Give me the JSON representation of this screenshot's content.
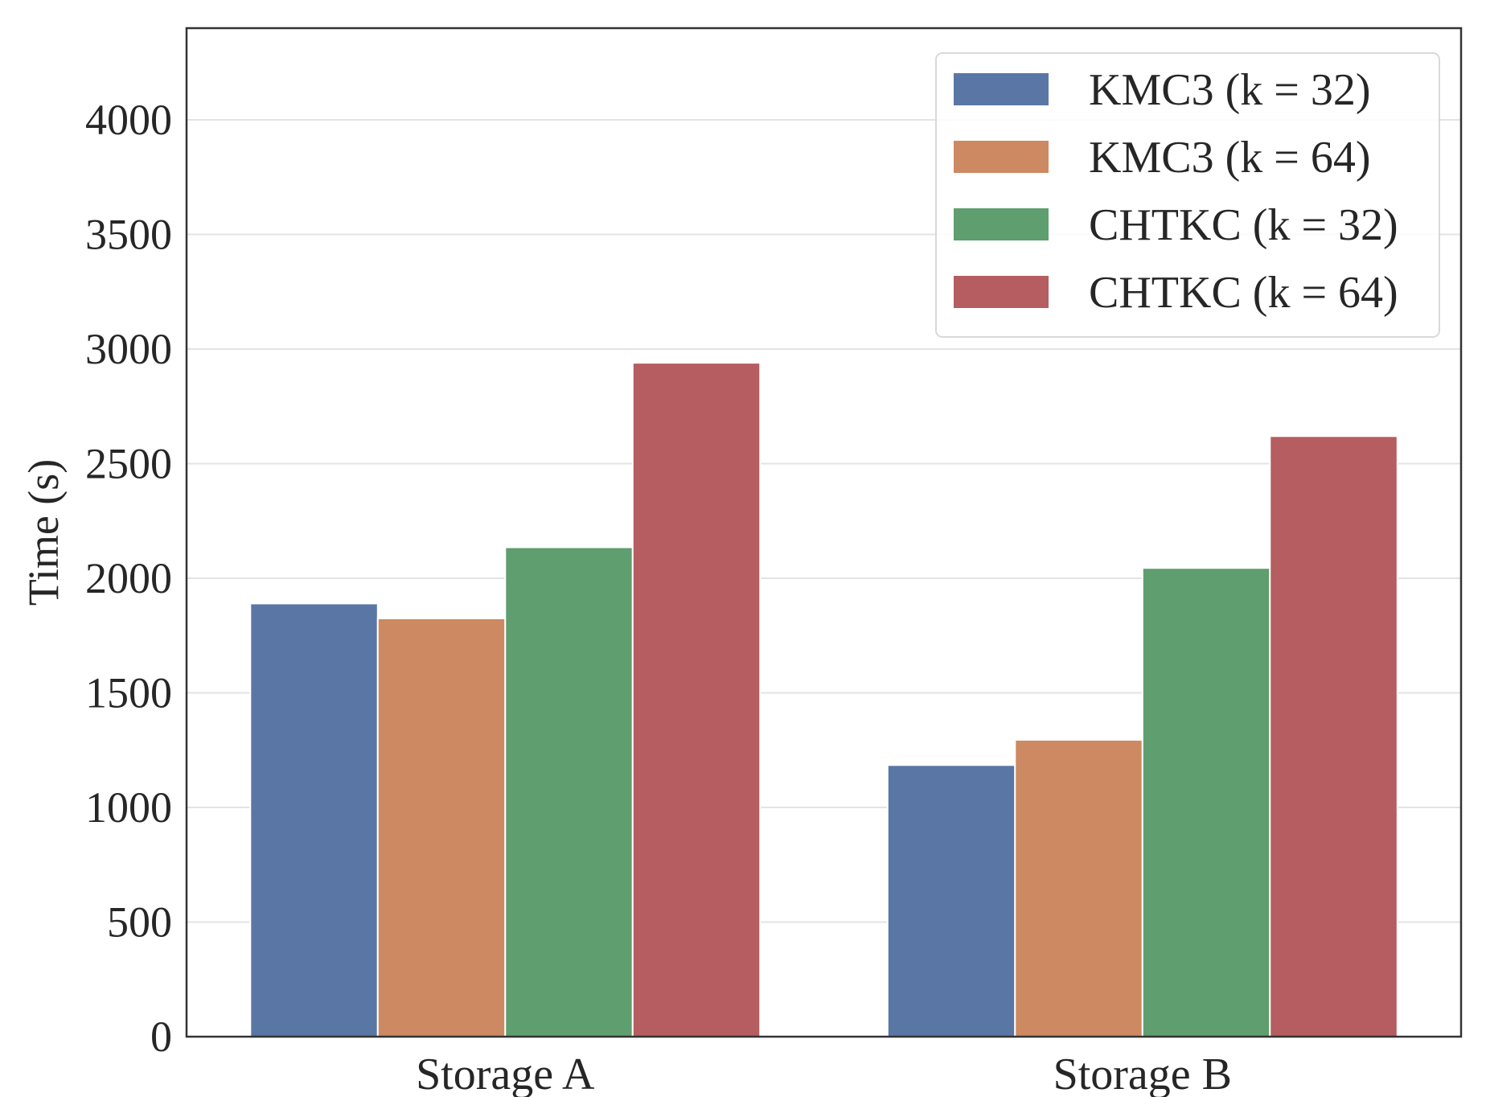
{
  "chart_data": {
    "type": "bar",
    "title": "",
    "xlabel": "",
    "ylabel": "Time (s)",
    "ylim": [
      0,
      4400
    ],
    "yticks": [
      0,
      500,
      1000,
      1500,
      2000,
      2500,
      3000,
      3500,
      4000
    ],
    "grid": true,
    "legend_position": "top-right",
    "categories": [
      "Storage A",
      "Storage B"
    ],
    "series": [
      {
        "name": "KMC3 (k = 32)",
        "color": "#5a76a5",
        "values": [
          1890,
          1185
        ]
      },
      {
        "name": "KMC3 (k = 64)",
        "color": "#cd8962",
        "values": [
          1825,
          1295
        ]
      },
      {
        "name": "CHTKC (k = 32)",
        "color": "#5f9e6e",
        "values": [
          2135,
          2045
        ]
      },
      {
        "name": "CHTKC (k = 64)",
        "color": "#b55d60",
        "values": [
          2940,
          2620
        ]
      }
    ]
  }
}
